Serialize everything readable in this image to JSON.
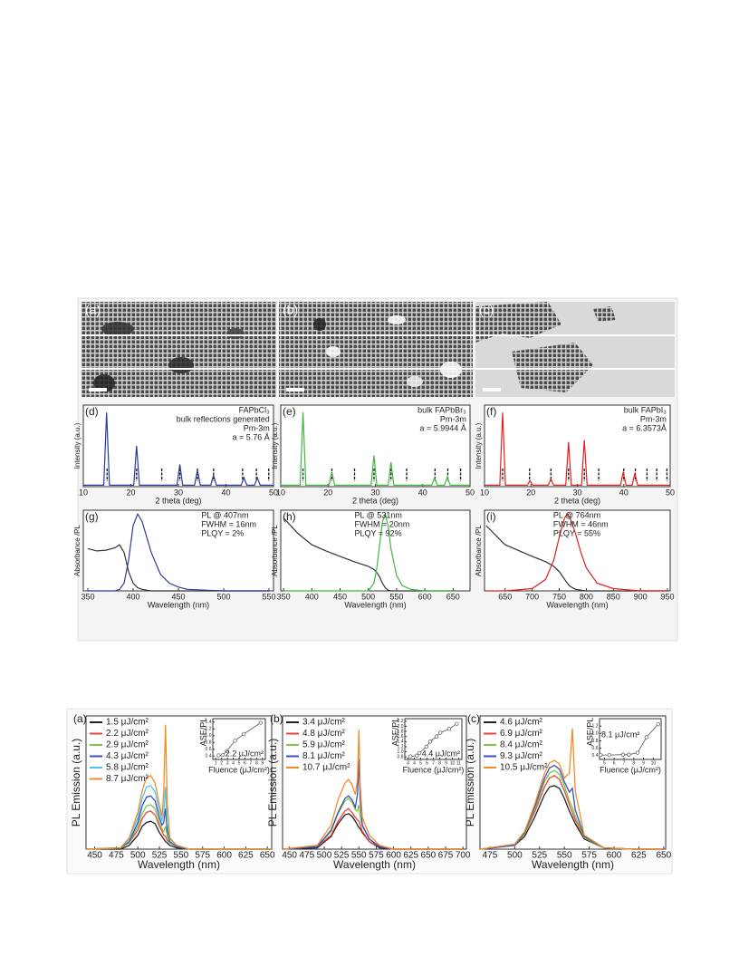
{
  "images": [
    {
      "label": "(a)"
    },
    {
      "label": "(b)"
    },
    {
      "label": "(c)"
    }
  ],
  "chart_data": [
    {
      "type": "line",
      "label": "(d)",
      "xlabel": "2 theta (deg)",
      "ylabel": "Intensity (a.u.)",
      "xlim": [
        10,
        50
      ],
      "ylim": [
        0,
        1.1
      ],
      "xticks": [
        10,
        20,
        30,
        40,
        50
      ],
      "notes": [
        "FAPbCl₃",
        "bulk reflections generated",
        "Pm-3m",
        "a = 5.76 Å"
      ],
      "x": [
        10,
        14.3,
        14.9,
        15.5,
        20.6,
        21.2,
        21.8,
        29.7,
        30.3,
        30.9,
        33.4,
        34.0,
        34.6,
        36.8,
        37.4,
        38.0,
        43.2,
        43.8,
        44.4,
        46.0,
        46.6,
        47.2,
        50
      ],
      "series": [
        {
          "color": "#2b3a9a",
          "values": [
            0.02,
            0.02,
            1.0,
            0.02,
            0.02,
            0.55,
            0.02,
            0.02,
            0.3,
            0.02,
            0.02,
            0.22,
            0.02,
            0.02,
            0.15,
            0.02,
            0.02,
            0.12,
            0.02,
            0.02,
            0.12,
            0.02,
            0.02
          ]
        }
      ],
      "reflections": [
        15,
        21.2,
        26.5,
        30.3,
        34,
        37.4,
        43.5,
        46.4,
        49
      ]
    },
    {
      "type": "line",
      "label": "(e)",
      "xlabel": "2 theta (deg)",
      "ylabel": "Intensity (a.u.)",
      "xlim": [
        10,
        50
      ],
      "ylim": [
        0,
        1.1
      ],
      "xticks": [
        10,
        20,
        30,
        40,
        50
      ],
      "notes": [
        "bulk FAPbBr₃",
        "Pm-3m",
        "a = 5.9944 Å"
      ],
      "x": [
        10,
        14.1,
        14.7,
        15.3,
        20.2,
        20.8,
        21.4,
        29.1,
        29.7,
        30.3,
        32.7,
        33.3,
        33.9,
        41.9,
        42.5,
        43.1,
        44.6,
        45.2,
        45.8,
        50
      ],
      "series": [
        {
          "color": "#3fb83f",
          "values": [
            0.02,
            0.02,
            1.0,
            0.02,
            0.02,
            0.2,
            0.02,
            0.02,
            0.42,
            0.02,
            0.02,
            0.33,
            0.02,
            0.02,
            0.12,
            0.02,
            0.02,
            0.13,
            0.02,
            0.02
          ]
        }
      ],
      "reflections": [
        14.7,
        20.8,
        25.6,
        29.7,
        33.3,
        36.6,
        42.6,
        45.3,
        48.0
      ]
    },
    {
      "type": "line",
      "label": "(f)",
      "xlabel": "2 theta (deg)",
      "ylabel": "Intensity (a.u.)",
      "xlim": [
        10,
        50
      ],
      "ylim": [
        0,
        1.1
      ],
      "xticks": [
        10,
        20,
        30,
        40,
        50
      ],
      "notes": [
        "bulk FAPbI₃",
        "Pm-3m",
        "a = 6.3573Å"
      ],
      "x": [
        10,
        13.3,
        13.9,
        14.5,
        19.2,
        19.8,
        20.4,
        23.7,
        24.3,
        24.9,
        27.5,
        28.1,
        28.7,
        30.9,
        31.5,
        32.1,
        39.3,
        39.9,
        40.5,
        41.8,
        42.4,
        43.0,
        50
      ],
      "series": [
        {
          "color": "#e02020",
          "values": [
            0.02,
            0.02,
            1.0,
            0.02,
            0.02,
            0.08,
            0.02,
            0.02,
            0.1,
            0.02,
            0.02,
            0.6,
            0.02,
            0.02,
            0.63,
            0.02,
            0.02,
            0.2,
            0.02,
            0.02,
            0.18,
            0.02,
            0.02
          ]
        }
      ],
      "reflections": [
        13.9,
        19.7,
        24.3,
        28.1,
        31.5,
        34.6,
        40.0,
        42.5,
        45.0,
        47.1,
        49.3
      ]
    },
    {
      "type": "line",
      "label": "(g)",
      "xlabel": "Wavelength (nm)",
      "ylabel": "Absorbance /PL",
      "xlim": [
        345,
        555
      ],
      "ylim": [
        0,
        1.05
      ],
      "xticks": [
        350,
        400,
        450,
        500,
        550
      ],
      "notes": [
        "PL @ 407nm",
        "FWHM = 16nm",
        "PLQY = 2%"
      ],
      "x": [
        350,
        360,
        370,
        380,
        385,
        390,
        395,
        400,
        405,
        410,
        415,
        420,
        430,
        440,
        450,
        460,
        480,
        500,
        550
      ],
      "series": [
        {
          "color": "#333333",
          "values": [
            0.55,
            0.52,
            0.53,
            0.56,
            0.6,
            0.5,
            0.25,
            0.1,
            0.04,
            0.02,
            0.01,
            0,
            0,
            0,
            0,
            0,
            0,
            0,
            0
          ]
        },
        {
          "color": "#2b3a9a",
          "values": [
            0,
            0,
            0,
            0,
            0.02,
            0.1,
            0.4,
            0.85,
            1.0,
            0.9,
            0.7,
            0.5,
            0.22,
            0.1,
            0.05,
            0.02,
            0.01,
            0,
            0
          ]
        }
      ]
    },
    {
      "type": "line",
      "label": "(h)",
      "xlabel": "Wavelength (nm)",
      "ylabel": "Absorbance /PL",
      "xlim": [
        345,
        680
      ],
      "ylim": [
        0,
        1.05
      ],
      "xticks": [
        350,
        400,
        450,
        500,
        550,
        600,
        650
      ],
      "notes": [
        "PL @ 531nm",
        "FWHM = 20nm",
        "PLQY = 92%"
      ],
      "x": [
        350,
        375,
        400,
        425,
        450,
        475,
        500,
        510,
        515,
        520,
        525,
        530,
        535,
        540,
        550,
        560,
        575,
        600,
        650
      ],
      "series": [
        {
          "color": "#333333",
          "values": [
            0.95,
            0.75,
            0.6,
            0.52,
            0.45,
            0.38,
            0.32,
            0.28,
            0.24,
            0.18,
            0.1,
            0.04,
            0.01,
            0,
            0,
            0,
            0,
            0,
            0
          ]
        },
        {
          "color": "#3fb83f",
          "values": [
            0,
            0,
            0,
            0,
            0,
            0,
            0,
            0.1,
            0.3,
            0.6,
            0.9,
            1.0,
            0.85,
            0.55,
            0.2,
            0.07,
            0.02,
            0,
            0
          ]
        }
      ]
    },
    {
      "type": "line",
      "label": "(i)",
      "xlabel": "Wavelength (nm)",
      "ylabel": "Absorbance /PL",
      "xlim": [
        612,
        955
      ],
      "ylim": [
        0,
        1.05
      ],
      "xticks": [
        650,
        700,
        750,
        800,
        850,
        900,
        950
      ],
      "notes": [
        "PL @ 764nm",
        "FWHM = 46nm",
        "PLQY = 55%"
      ],
      "x": [
        615,
        650,
        700,
        725,
        740,
        750,
        760,
        765,
        770,
        780,
        790,
        800,
        820,
        850,
        900,
        950
      ],
      "series": [
        {
          "color": "#333333",
          "values": [
            0.85,
            0.6,
            0.45,
            0.38,
            0.32,
            0.25,
            0.15,
            0.1,
            0.06,
            0.02,
            0.01,
            0,
            0,
            0,
            0,
            0
          ]
        },
        {
          "color": "#e02020",
          "values": [
            0,
            0,
            0.03,
            0.15,
            0.4,
            0.7,
            0.95,
            1.0,
            0.95,
            0.75,
            0.5,
            0.3,
            0.1,
            0.03,
            0,
            0
          ]
        }
      ]
    },
    {
      "type": "line",
      "label": "(a)",
      "xlabel": "Wavelength (nm)",
      "ylabel": "PL Emission (a.u.)",
      "legend": "upper left",
      "xlim": [
        440,
        655
      ],
      "ylim": [
        0,
        1.05
      ],
      "xticks": [
        450,
        475,
        500,
        525,
        550,
        575,
        600,
        625,
        650
      ],
      "x": [
        440,
        480,
        490,
        500,
        505,
        510,
        515,
        520,
        525,
        528,
        530,
        532,
        534,
        537,
        545,
        560,
        600,
        655
      ],
      "series": [
        {
          "name": "1.5 μJ/cm²",
          "color": "#222222",
          "values": [
            0,
            0,
            0.03,
            0.11,
            0.18,
            0.21,
            0.22,
            0.2,
            0.13,
            0.1,
            0.08,
            0.06,
            0.05,
            0.03,
            0.01,
            0,
            0,
            0
          ]
        },
        {
          "name": "2.2 μJ/cm²",
          "color": "#e8453c",
          "values": [
            0,
            0.01,
            0.05,
            0.15,
            0.24,
            0.29,
            0.3,
            0.27,
            0.18,
            0.14,
            0.11,
            0.1,
            0.07,
            0.05,
            0.02,
            0,
            0,
            0
          ]
        },
        {
          "name": "2.9 μJ/cm²",
          "color": "#7ac943",
          "values": [
            0,
            0.01,
            0.05,
            0.18,
            0.28,
            0.34,
            0.35,
            0.32,
            0.21,
            0.16,
            0.14,
            0.18,
            0.1,
            0.05,
            0.02,
            0,
            0,
            0
          ]
        },
        {
          "name": "4.3 μJ/cm²",
          "color": "#3b4cc0",
          "values": [
            0,
            0.01,
            0.06,
            0.21,
            0.34,
            0.41,
            0.42,
            0.38,
            0.25,
            0.19,
            0.21,
            0.32,
            0.15,
            0.06,
            0.02,
            0,
            0,
            0
          ]
        },
        {
          "name": "5.8 μJ/cm²",
          "color": "#4fc3e8",
          "values": [
            0,
            0.01,
            0.08,
            0.25,
            0.4,
            0.49,
            0.5,
            0.45,
            0.3,
            0.23,
            0.28,
            0.49,
            0.21,
            0.08,
            0.03,
            0,
            0,
            0
          ]
        },
        {
          "name": "8.7 μJ/cm²",
          "color": "#f28c28",
          "values": [
            0,
            0.01,
            0.09,
            0.29,
            0.46,
            0.56,
            0.58,
            0.52,
            0.35,
            0.26,
            0.45,
            0.98,
            0.38,
            0.09,
            0.03,
            0,
            0,
            0
          ]
        }
      ],
      "inset": {
        "xlabel": "Fluence (μJ/cm²)",
        "ylabel": "ASE/PL",
        "annotation": "2.2 μJ/cm²",
        "xlim": [
          0.5,
          9.5
        ],
        "ylim": [
          0.3,
          1.5
        ],
        "xticks": [
          1,
          2,
          3,
          4,
          5,
          6,
          7,
          8,
          9
        ],
        "yticks": [
          0.4,
          0.6,
          0.8,
          {
            "value": 1.0,
            "label": "1.0"
          },
          1.2,
          1.4
        ],
        "x": [
          1.5,
          2.2,
          2.9,
          4.3,
          5.8,
          8.7
        ],
        "values": [
          0.42,
          0.43,
          0.55,
          0.85,
          1.05,
          1.38
        ]
      }
    },
    {
      "type": "line",
      "label": "(b)",
      "xlabel": "Wavelength (nm)",
      "ylabel": "PL Emission (a.u.)",
      "legend": "upper left",
      "xlim": [
        440,
        705
      ],
      "ylim": [
        0,
        1.05
      ],
      "xticks": [
        450,
        475,
        500,
        525,
        550,
        575,
        600,
        625,
        650,
        675,
        700
      ],
      "x": [
        440,
        490,
        510,
        520,
        530,
        535,
        540,
        545,
        548,
        550,
        552,
        555,
        565,
        580,
        600,
        700
      ],
      "series": [
        {
          "name": "3.4 μJ/cm²",
          "color": "#222222",
          "values": [
            0,
            0.01,
            0.1,
            0.2,
            0.27,
            0.28,
            0.26,
            0.22,
            0.19,
            0.17,
            0.16,
            0.13,
            0.06,
            0.01,
            0,
            0
          ]
        },
        {
          "name": "4.8 μJ/cm²",
          "color": "#e8453c",
          "values": [
            0,
            0.02,
            0.11,
            0.22,
            0.3,
            0.32,
            0.29,
            0.25,
            0.23,
            0.22,
            0.19,
            0.14,
            0.06,
            0.02,
            0,
            0
          ]
        },
        {
          "name": "5.9 μJ/cm²",
          "color": "#7ac943",
          "values": [
            0,
            0.02,
            0.14,
            0.28,
            0.38,
            0.4,
            0.37,
            0.31,
            0.3,
            0.35,
            0.25,
            0.18,
            0.08,
            0.02,
            0,
            0
          ]
        },
        {
          "name": "8.1 μJ/cm²",
          "color": "#3b4cc0",
          "values": [
            0,
            0.02,
            0.15,
            0.29,
            0.4,
            0.42,
            0.39,
            0.33,
            0.43,
            0.71,
            0.38,
            0.19,
            0.08,
            0.02,
            0,
            0
          ]
        },
        {
          "name": "10.7 μJ/cm²",
          "color": "#f28c28",
          "values": [
            0,
            0.03,
            0.19,
            0.39,
            0.52,
            0.55,
            0.51,
            0.43,
            0.55,
            0.94,
            0.49,
            0.25,
            0.11,
            0.03,
            0,
            0
          ]
        }
      ],
      "inset": {
        "xlabel": "Fluence (μJ/cm²)",
        "ylabel": "ASE/PL",
        "annotation": "4.4 μJ/cm²",
        "xlim": [
          2.5,
          11.5
        ],
        "ylim": [
          0.7,
          2.3
        ],
        "xticks": [
          3,
          4,
          5,
          6,
          7,
          8,
          9,
          10,
          11
        ],
        "yticks": [
          0.8,
          {
            "value": 1.0,
            "label": "1.0"
          },
          1.2,
          1.4,
          1.6,
          1.8,
          {
            "value": 2.0,
            "label": "2.0"
          },
          2.2
        ],
        "x": [
          3.4,
          4.4,
          4.8,
          5.9,
          6.5,
          7.5,
          8.1,
          9.5,
          10.7
        ],
        "values": [
          0.82,
          0.85,
          0.95,
          1.2,
          1.4,
          1.6,
          1.75,
          1.9,
          2.1
        ]
      }
    },
    {
      "type": "line",
      "label": "(c)",
      "xlabel": "Wavelength (nm)",
      "ylabel": "PL Emission (a.u.)",
      "legend": "upper left",
      "xlim": [
        465,
        652
      ],
      "ylim": [
        0,
        1.05
      ],
      "xticks": [
        475,
        500,
        525,
        550,
        575,
        600,
        625,
        650
      ],
      "x": [
        465,
        500,
        510,
        520,
        530,
        535,
        540,
        545,
        550,
        555,
        558,
        561,
        570,
        590,
        620,
        650
      ],
      "series": [
        {
          "name": "4.6 μJ/cm²",
          "color": "#222222",
          "values": [
            0,
            0.03,
            0.1,
            0.25,
            0.43,
            0.49,
            0.5,
            0.48,
            0.4,
            0.3,
            0.25,
            0.2,
            0.08,
            0.01,
            0,
            0
          ]
        },
        {
          "name": "6.9 μJ/cm²",
          "color": "#e8453c",
          "values": [
            0,
            0.03,
            0.12,
            0.29,
            0.49,
            0.56,
            0.58,
            0.55,
            0.46,
            0.35,
            0.29,
            0.23,
            0.09,
            0.01,
            0,
            0
          ]
        },
        {
          "name": "8.4 μJ/cm²",
          "color": "#7ac943",
          "values": [
            0,
            0.03,
            0.12,
            0.31,
            0.53,
            0.6,
            0.62,
            0.59,
            0.5,
            0.38,
            0.33,
            0.26,
            0.09,
            0.01,
            0,
            0
          ]
        },
        {
          "name": "9.3 μJ/cm²",
          "color": "#3b4cc0",
          "values": [
            0,
            0.03,
            0.13,
            0.33,
            0.56,
            0.64,
            0.66,
            0.63,
            0.53,
            0.45,
            0.48,
            0.31,
            0.1,
            0.01,
            0,
            0
          ]
        },
        {
          "name": "10.5 μJ/cm²",
          "color": "#f28c28",
          "values": [
            0,
            0.04,
            0.14,
            0.35,
            0.6,
            0.68,
            0.7,
            0.67,
            0.56,
            0.6,
            0.95,
            0.46,
            0.11,
            0.01,
            0,
            0
          ]
        }
      ],
      "inset": {
        "xlabel": "Fluence (μJ/cm²)",
        "ylabel": "ASE/PL",
        "annotation": "8.1 μJ/cm²",
        "xlim": [
          4.5,
          10.8
        ],
        "ylim": [
          0.3,
          1.4
        ],
        "xticks": [
          5,
          6,
          7,
          8,
          9,
          10
        ],
        "yticks": [
          0.4,
          0.6,
          0.8,
          {
            "value": 1.0,
            "label": "1.0"
          },
          1.2
        ],
        "x": [
          4.6,
          5.5,
          6.9,
          7.5,
          8.4,
          9.3,
          10.5
        ],
        "values": [
          0.42,
          0.42,
          0.43,
          0.43,
          0.48,
          0.9,
          1.25
        ]
      }
    }
  ]
}
